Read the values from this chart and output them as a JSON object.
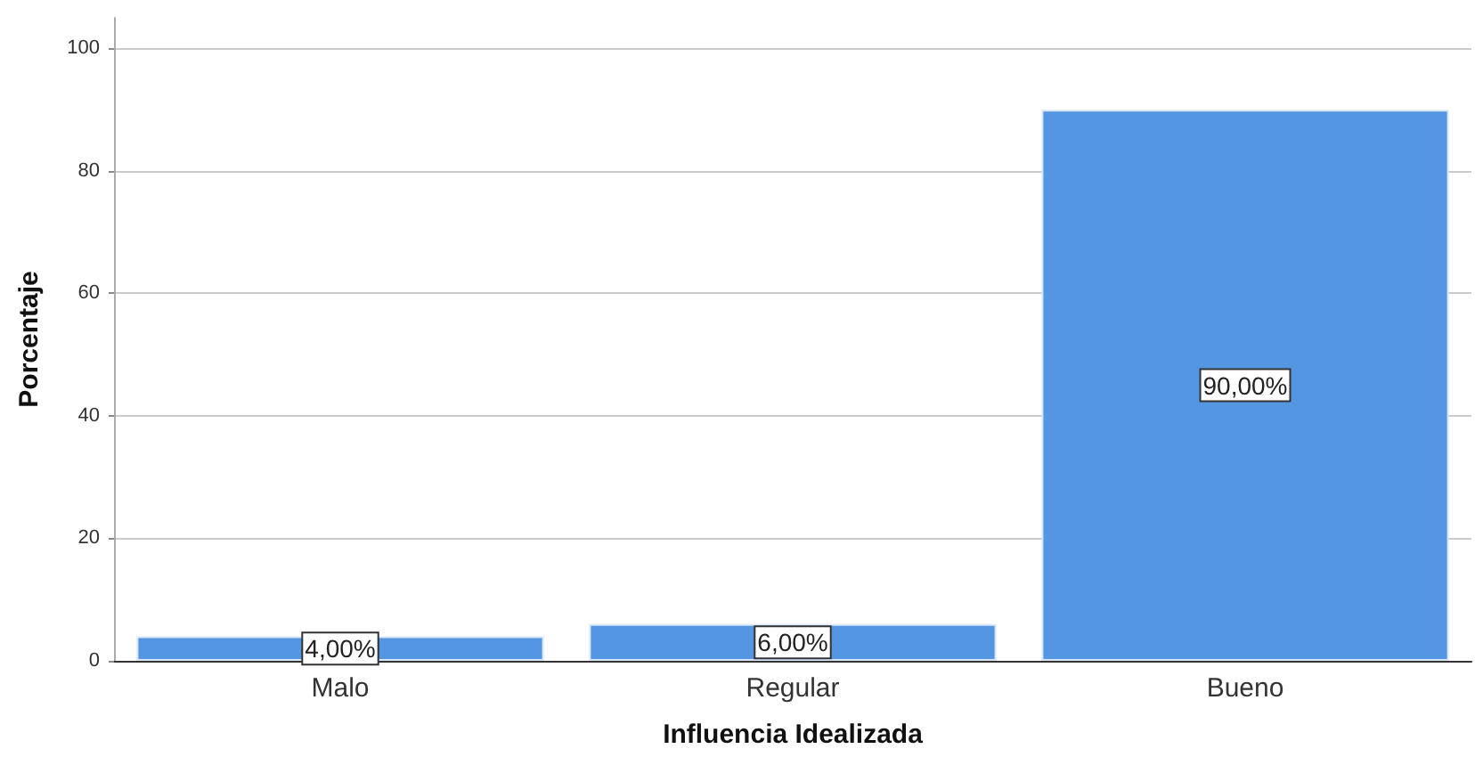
{
  "chart_data": {
    "type": "bar",
    "xlabel": "Influencia Idealizada",
    "ylabel": "Porcentaje",
    "categories": [
      "Malo",
      "Regular",
      "Bueno"
    ],
    "values": [
      4,
      6,
      90
    ],
    "color": "#5596e3",
    "value_labels": [
      "4,00%",
      "6,00%",
      "90,00%"
    ],
    "ylim": [
      0,
      105
    ],
    "yticks": [
      0,
      20,
      40,
      60,
      80,
      100
    ],
    "grid": "y"
  }
}
